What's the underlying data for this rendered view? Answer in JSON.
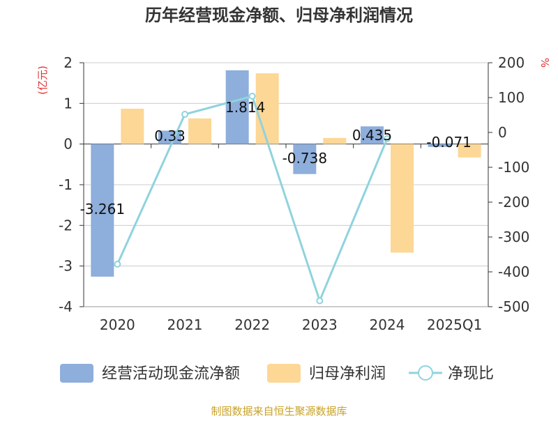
{
  "chart_data": {
    "type": "bar",
    "title": "历年经营现金净额、归母净利润情况",
    "y_left_label": "(亿元)",
    "y_right_label": "%",
    "y_left_ticks": [
      2,
      1,
      0,
      -1,
      -2,
      -3,
      -4
    ],
    "y_right_ticks": [
      200,
      100,
      0,
      -100,
      -200,
      -300,
      -400,
      -500
    ],
    "ylim_left": [
      -4,
      2
    ],
    "ylim_right": [
      -500,
      200
    ],
    "categories": [
      "2020",
      "2021",
      "2022",
      "2023",
      "2024",
      "2025Q1"
    ],
    "series": [
      {
        "name": "经营活动现金流净额",
        "type": "bar",
        "axis": "left",
        "color": "#8eaedc",
        "values": [
          -3.261,
          0.33,
          1.814,
          -0.738,
          0.435,
          -0.071
        ],
        "labels": [
          "-3.261",
          "0.33",
          "1.814",
          "-0.738",
          "0.435",
          "-0.071"
        ]
      },
      {
        "name": "归母净利润",
        "type": "bar",
        "axis": "left",
        "color": "#fdd796",
        "values": [
          0.87,
          0.63,
          1.74,
          0.15,
          -2.67,
          -0.33
        ]
      },
      {
        "name": "净现比",
        "type": "line",
        "axis": "right",
        "color": "#8fd3dd",
        "values": [
          -378,
          52,
          104,
          -483,
          -18,
          null
        ]
      }
    ],
    "grid": true,
    "legend_position": "bottom"
  },
  "footer": {
    "source": "制图数据来自恒生聚源数据库"
  }
}
